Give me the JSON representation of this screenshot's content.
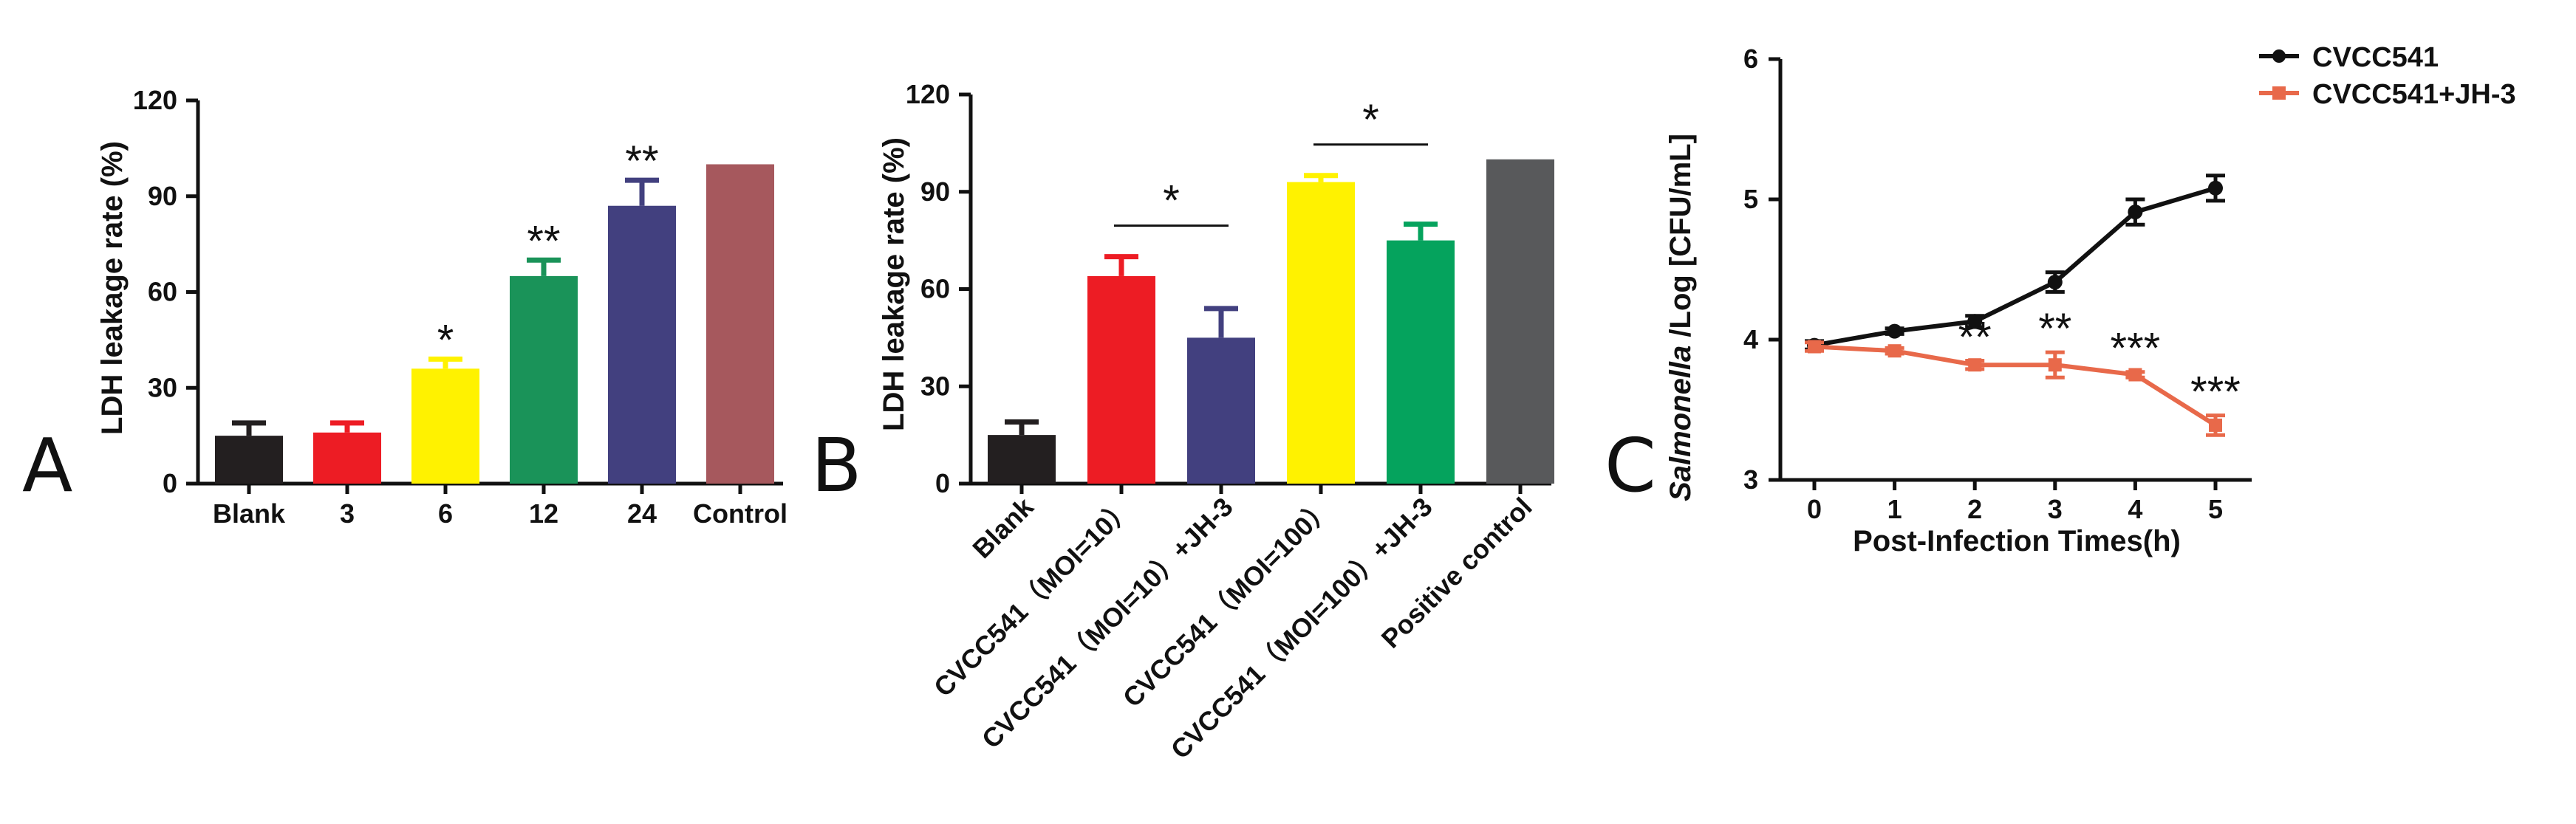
{
  "chart_data": [
    {
      "type": "bar",
      "panel_label": "A",
      "ylabel": "LDH leakage rate (%)",
      "ylim": [
        0,
        120
      ],
      "yticks": [
        "0",
        "30",
        "60",
        "90",
        "120"
      ],
      "categories": [
        "Blank",
        "3",
        "6",
        "12",
        "24",
        "Control"
      ],
      "values": [
        15,
        16,
        36,
        65,
        87,
        100
      ],
      "errors": [
        4,
        3,
        3,
        5,
        8,
        0.5
      ],
      "colors": [
        "#231f20",
        "#ed1c24",
        "#fff200",
        "#1a9359",
        "#42407f",
        "#a6585d"
      ],
      "annotations": [
        "",
        "",
        "*",
        "**",
        "**",
        ""
      ]
    },
    {
      "type": "bar",
      "panel_label": "B",
      "ylabel": "LDH leakage rate (%)",
      "ylim": [
        0,
        120
      ],
      "yticks": [
        "0",
        "30",
        "60",
        "90",
        "120"
      ],
      "categories": [
        "Blank",
        "CVCC541（MOI=10）",
        "CVCC541（MOI=10）+JH-3",
        "CVCC541（MOI=100）",
        "CVCC541（MOI=100）+JH-3",
        "Positive control"
      ],
      "values": [
        15,
        64,
        45,
        93,
        75,
        100
      ],
      "errors": [
        4,
        6,
        9,
        2,
        5,
        0.5
      ],
      "colors": [
        "#231f20",
        "#ed1c24",
        "#42407f",
        "#fff200",
        "#05a35d",
        "#58595b"
      ],
      "comparisons": [
        {
          "from": 1,
          "to": 2,
          "label": "*"
        },
        {
          "from": 3,
          "to": 4,
          "label": "*"
        }
      ]
    },
    {
      "type": "line",
      "panel_label": "C",
      "xlabel": "Post-Infection Times(h)",
      "ylabel_italic": "Salmonella",
      "ylabel_rest": " /Log [CFU/mL]",
      "x": [
        0,
        1,
        2,
        3,
        4,
        5
      ],
      "xticks": [
        "0",
        "1",
        "2",
        "3",
        "4",
        "5"
      ],
      "ylim": [
        3,
        6
      ],
      "yticks": [
        "3",
        "4",
        "5",
        "6"
      ],
      "series": [
        {
          "name": "CVCC541",
          "color": "#111111",
          "marker": "circle",
          "values": [
            3.96,
            4.06,
            4.13,
            4.41,
            4.91,
            5.08
          ],
          "errors": [
            0.03,
            0.02,
            0.04,
            0.07,
            0.09,
            0.09
          ]
        },
        {
          "name": "CVCC541+JH-3",
          "color": "#e8694a",
          "marker": "square",
          "values": [
            3.95,
            3.92,
            3.82,
            3.82,
            3.75,
            3.39
          ],
          "errors": [
            0.03,
            0.02,
            0.03,
            0.09,
            0.02,
            0.07
          ]
        }
      ],
      "annotations": [
        "",
        "",
        "**",
        "**",
        "***",
        "***"
      ],
      "legend_position": "top-right"
    }
  ]
}
